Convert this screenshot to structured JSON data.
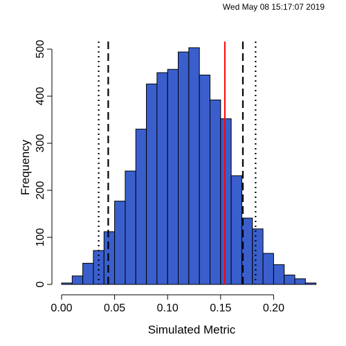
{
  "timestamp": "Wed May 08 15:17:07 2019",
  "colors": {
    "bar_fill": "#3A5FCD",
    "bar_stroke": "#000000",
    "observed_line": "#FF0000",
    "axis": "#000000"
  },
  "chart_data": {
    "type": "bar",
    "subtype": "histogram",
    "title": "",
    "xlabel": "Simulated Metric",
    "ylabel": "Frequency",
    "xlim": [
      0.0,
      0.24
    ],
    "ylim": [
      0,
      500
    ],
    "bin_width": 0.01,
    "bin_edges": [
      0.0,
      0.01,
      0.02,
      0.03,
      0.04,
      0.05,
      0.06,
      0.07,
      0.08,
      0.09,
      0.1,
      0.11,
      0.12,
      0.13,
      0.14,
      0.15,
      0.16,
      0.17,
      0.18,
      0.19,
      0.2,
      0.21,
      0.22,
      0.23,
      0.24
    ],
    "values": [
      3,
      18,
      45,
      72,
      112,
      177,
      241,
      330,
      426,
      450,
      457,
      494,
      503,
      445,
      392,
      352,
      231,
      141,
      118,
      66,
      42,
      20,
      12,
      3
    ],
    "x_ticks": [
      "0.00",
      "0.05",
      "0.10",
      "0.15",
      "0.20"
    ],
    "x_tick_values": [
      0.0,
      0.05,
      0.1,
      0.15,
      0.2
    ],
    "y_ticks": [
      "0",
      "100",
      "200",
      "300",
      "400",
      "500"
    ],
    "y_tick_values": [
      0,
      100,
      200,
      300,
      400,
      500
    ],
    "reference_lines": [
      {
        "x": 0.035,
        "style": "dotted",
        "color": "#000000"
      },
      {
        "x": 0.044,
        "style": "dashed",
        "color": "#000000"
      },
      {
        "x": 0.154,
        "style": "solid",
        "color": "#FF0000"
      },
      {
        "x": 0.171,
        "style": "dashed",
        "color": "#000000"
      },
      {
        "x": 0.183,
        "style": "dotted",
        "color": "#000000"
      }
    ],
    "grid": false,
    "legend": "none"
  }
}
